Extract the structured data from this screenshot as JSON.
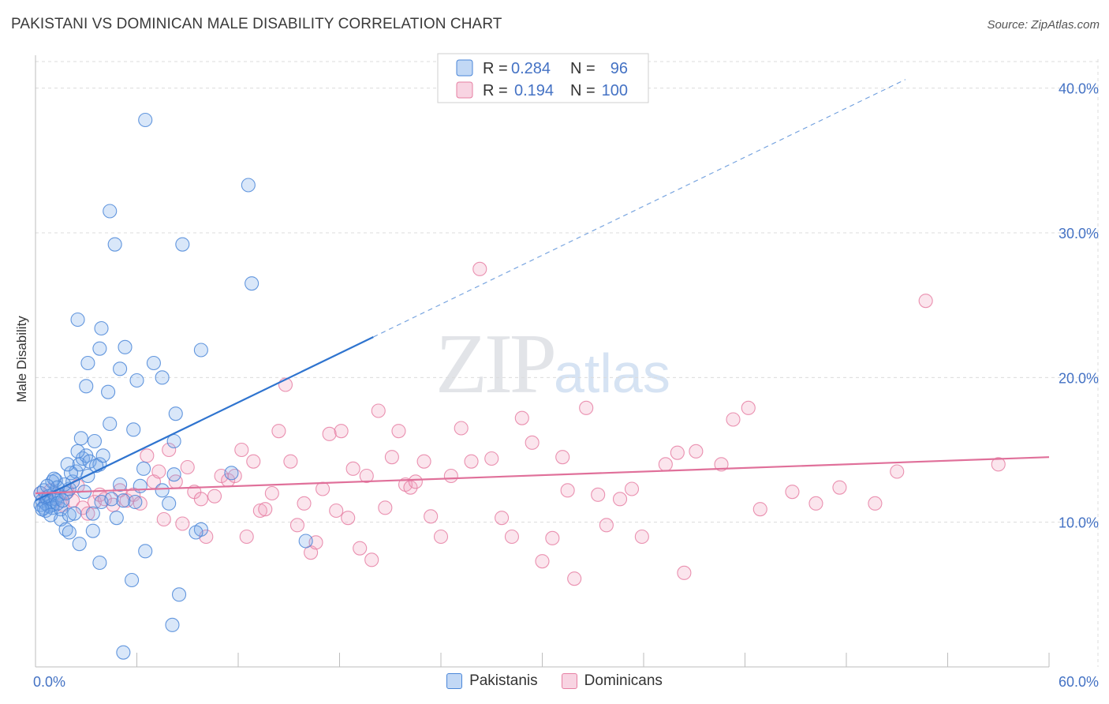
{
  "header": {
    "title": "PAKISTANI VS DOMINICAN MALE DISABILITY CORRELATION CHART",
    "source": "Source: ZipAtlas.com"
  },
  "watermark": {
    "zip": "ZIP",
    "atlas": "atlas"
  },
  "colors": {
    "blue": "#4a86d8",
    "blue_fill": "rgba(120,168,232,0.28)",
    "blue_line": "#2f74cf",
    "pink": "#e67fa3",
    "pink_fill": "rgba(240,160,190,0.28)",
    "pink_line": "#e0709a",
    "tick_text": "#4472c4",
    "grid": "#dcdcdc"
  },
  "legend": {
    "rows": [
      {
        "r_label": "R =",
        "r_value": "0.284",
        "n_label": "N =",
        "n_value": "96"
      },
      {
        "r_label": "R =",
        "r_value": "0.194",
        "n_label": "N =",
        "n_value": "100"
      }
    ]
  },
  "bottom_legend": {
    "items": [
      "Pakistanis",
      "Dominicans"
    ]
  },
  "chart_data": {
    "type": "scatter",
    "title": "PAKISTANI VS DOMINICAN MALE DISABILITY CORRELATION CHART",
    "xlabel": "",
    "ylabel": "Male Disability",
    "xlim": [
      0,
      60
    ],
    "ylim": [
      0,
      42
    ],
    "x_tick_labels": [
      "0.0%",
      "60.0%"
    ],
    "y_ticks": [
      10,
      20,
      30,
      40
    ],
    "y_tick_labels": [
      "10.0%",
      "20.0%",
      "30.0%",
      "40.0%"
    ],
    "grid": true,
    "series": [
      {
        "name": "Pakistanis",
        "r": 0.284,
        "n": 96,
        "trend": {
          "x0": 0,
          "y0": 11.5,
          "x1": 20,
          "y1": 22.8,
          "dashed_to_x": 51.5
        },
        "points": [
          [
            0.3,
            11.2
          ],
          [
            0.4,
            11.5
          ],
          [
            0.5,
            11.0
          ],
          [
            0.6,
            11.3
          ],
          [
            0.7,
            11.6
          ],
          [
            0.8,
            11.1
          ],
          [
            0.9,
            11.4
          ],
          [
            1.0,
            11.2
          ],
          [
            0.3,
            12.0
          ],
          [
            0.5,
            12.2
          ],
          [
            0.8,
            11.8
          ],
          [
            1.1,
            12.0
          ],
          [
            1.2,
            11.6
          ],
          [
            1.4,
            11.9
          ],
          [
            1.0,
            11.0
          ],
          [
            0.6,
            10.8
          ],
          [
            0.4,
            10.9
          ],
          [
            0.9,
            10.5
          ],
          [
            1.5,
            10.9
          ],
          [
            1.3,
            11.3
          ],
          [
            1.6,
            11.5
          ],
          [
            1.8,
            12.0
          ],
          [
            2.0,
            12.3
          ],
          [
            2.2,
            12.8
          ],
          [
            1.7,
            12.6
          ],
          [
            1.2,
            12.9
          ],
          [
            1.0,
            12.8
          ],
          [
            2.4,
            13.5
          ],
          [
            2.6,
            14.0
          ],
          [
            2.8,
            14.4
          ],
          [
            3.0,
            14.6
          ],
          [
            2.5,
            14.9
          ],
          [
            2.7,
            15.8
          ],
          [
            3.5,
            15.6
          ],
          [
            3.2,
            14.2
          ],
          [
            3.8,
            14.0
          ],
          [
            3.6,
            13.9
          ],
          [
            4.0,
            14.6
          ],
          [
            3.1,
            13.2
          ],
          [
            2.1,
            13.4
          ],
          [
            1.9,
            14.0
          ],
          [
            1.5,
            10.2
          ],
          [
            2.0,
            10.5
          ],
          [
            2.3,
            10.6
          ],
          [
            3.4,
            10.6
          ],
          [
            3.9,
            11.4
          ],
          [
            4.5,
            11.6
          ],
          [
            5.2,
            11.5
          ],
          [
            6.2,
            12.5
          ],
          [
            7.5,
            12.2
          ],
          [
            5.0,
            12.6
          ],
          [
            4.8,
            10.3
          ],
          [
            2.9,
            12.1
          ],
          [
            1.8,
            9.5
          ],
          [
            2.0,
            9.3
          ],
          [
            3.4,
            9.4
          ],
          [
            2.6,
            8.5
          ],
          [
            3.8,
            7.2
          ],
          [
            6.5,
            8.0
          ],
          [
            5.7,
            6.0
          ],
          [
            8.5,
            5.0
          ],
          [
            8.1,
            2.9
          ],
          [
            5.2,
            1.0
          ],
          [
            9.8,
            9.5
          ],
          [
            9.5,
            9.3
          ],
          [
            6.4,
            13.7
          ],
          [
            8.2,
            13.3
          ],
          [
            11.6,
            13.4
          ],
          [
            8.2,
            15.6
          ],
          [
            5.8,
            16.4
          ],
          [
            4.4,
            16.8
          ],
          [
            8.3,
            17.5
          ],
          [
            6.0,
            19.8
          ],
          [
            4.3,
            19.0
          ],
          [
            3.0,
            19.4
          ],
          [
            7.5,
            20.0
          ],
          [
            5.0,
            20.6
          ],
          [
            3.1,
            21.0
          ],
          [
            7.0,
            21.0
          ],
          [
            5.3,
            22.1
          ],
          [
            3.8,
            22.0
          ],
          [
            9.8,
            21.9
          ],
          [
            3.9,
            23.4
          ],
          [
            2.5,
            24.0
          ],
          [
            12.8,
            26.5
          ],
          [
            4.7,
            29.2
          ],
          [
            8.7,
            29.2
          ],
          [
            4.4,
            31.5
          ],
          [
            12.6,
            33.3
          ],
          [
            6.5,
            37.8
          ],
          [
            16.0,
            8.7
          ],
          [
            7.9,
            11.3
          ],
          [
            5.9,
            11.4
          ],
          [
            1.1,
            13.0
          ],
          [
            1.3,
            12.4
          ],
          [
            0.7,
            12.5
          ]
        ]
      },
      {
        "name": "Dominicans",
        "r": 0.194,
        "n": 100,
        "trend": {
          "x0": 0,
          "y0": 12.0,
          "x1": 60,
          "y1": 14.5
        },
        "points": [
          [
            0.3,
            12.0
          ],
          [
            0.6,
            11.7
          ],
          [
            0.9,
            12.2
          ],
          [
            1.3,
            11.6
          ],
          [
            1.6,
            11.2
          ],
          [
            1.9,
            12.1
          ],
          [
            2.2,
            11.5
          ],
          [
            2.5,
            12.5
          ],
          [
            2.8,
            11.0
          ],
          [
            3.1,
            10.6
          ],
          [
            3.5,
            11.4
          ],
          [
            3.8,
            11.9
          ],
          [
            4.1,
            11.6
          ],
          [
            4.6,
            11.2
          ],
          [
            5.0,
            12.2
          ],
          [
            5.4,
            11.5
          ],
          [
            5.8,
            11.9
          ],
          [
            6.2,
            11.3
          ],
          [
            6.6,
            14.6
          ],
          [
            7.0,
            12.8
          ],
          [
            7.3,
            13.5
          ],
          [
            7.6,
            10.2
          ],
          [
            7.9,
            15.0
          ],
          [
            8.3,
            12.8
          ],
          [
            8.7,
            9.9
          ],
          [
            9.0,
            13.8
          ],
          [
            9.4,
            12.1
          ],
          [
            9.8,
            11.6
          ],
          [
            10.1,
            9.0
          ],
          [
            10.6,
            11.8
          ],
          [
            11.0,
            13.2
          ],
          [
            11.4,
            12.9
          ],
          [
            11.8,
            13.2
          ],
          [
            12.2,
            15.0
          ],
          [
            12.5,
            9.0
          ],
          [
            12.9,
            14.2
          ],
          [
            13.3,
            10.8
          ],
          [
            13.6,
            10.9
          ],
          [
            14.0,
            12.0
          ],
          [
            14.4,
            16.3
          ],
          [
            14.8,
            19.5
          ],
          [
            15.1,
            14.2
          ],
          [
            15.5,
            9.8
          ],
          [
            15.9,
            11.3
          ],
          [
            16.3,
            7.9
          ],
          [
            16.6,
            8.6
          ],
          [
            17.0,
            12.3
          ],
          [
            17.4,
            16.1
          ],
          [
            17.8,
            10.8
          ],
          [
            18.1,
            16.3
          ],
          [
            18.5,
            10.3
          ],
          [
            18.8,
            13.7
          ],
          [
            19.2,
            8.2
          ],
          [
            19.6,
            13.2
          ],
          [
            19.9,
            7.4
          ],
          [
            20.3,
            17.7
          ],
          [
            20.7,
            11.0
          ],
          [
            21.1,
            14.5
          ],
          [
            21.5,
            16.3
          ],
          [
            21.9,
            12.6
          ],
          [
            22.2,
            12.4
          ],
          [
            22.5,
            12.8
          ],
          [
            23.0,
            14.2
          ],
          [
            23.4,
            10.4
          ],
          [
            24.0,
            9.0
          ],
          [
            24.6,
            13.2
          ],
          [
            25.2,
            16.5
          ],
          [
            25.8,
            14.2
          ],
          [
            26.3,
            27.5
          ],
          [
            27.0,
            14.4
          ],
          [
            27.6,
            10.3
          ],
          [
            28.2,
            9.0
          ],
          [
            28.8,
            17.2
          ],
          [
            29.4,
            15.5
          ],
          [
            30.0,
            7.3
          ],
          [
            30.6,
            8.9
          ],
          [
            31.2,
            14.5
          ],
          [
            31.5,
            12.2
          ],
          [
            31.9,
            6.1
          ],
          [
            32.6,
            17.9
          ],
          [
            33.3,
            11.9
          ],
          [
            33.8,
            9.8
          ],
          [
            34.6,
            11.6
          ],
          [
            35.3,
            12.3
          ],
          [
            35.9,
            9.0
          ],
          [
            37.3,
            14.0
          ],
          [
            38.0,
            14.8
          ],
          [
            38.4,
            6.5
          ],
          [
            39.1,
            14.9
          ],
          [
            40.6,
            14.0
          ],
          [
            41.3,
            17.1
          ],
          [
            42.2,
            17.9
          ],
          [
            42.9,
            10.9
          ],
          [
            44.8,
            12.1
          ],
          [
            46.2,
            11.3
          ],
          [
            47.6,
            12.4
          ],
          [
            49.7,
            11.3
          ],
          [
            51.0,
            13.5
          ],
          [
            52.7,
            25.3
          ],
          [
            57.0,
            14.0
          ]
        ]
      }
    ]
  }
}
